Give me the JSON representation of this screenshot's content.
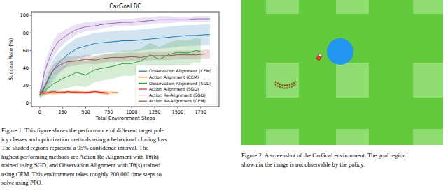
{
  "chart_data": {
    "type": "line",
    "title": "CarGoal BC",
    "x_label": "Total Environment Steps",
    "y_label": "Success Rate (%)",
    "xlim": [
      -90,
      1950
    ],
    "ylim": [
      -4,
      104
    ],
    "xticks": [
      0,
      250,
      500,
      750,
      1000,
      1250,
      1500,
      1750
    ],
    "yticks": [
      0,
      20,
      40,
      60,
      80,
      100
    ],
    "grid": false,
    "legend": "lower right",
    "series": [
      {
        "name": "Observation Alignment (CEM)",
        "color": "#1f77b4",
        "x": [
          0,
          25,
          50,
          100,
          150,
          200,
          250,
          300,
          400,
          500,
          600,
          700,
          800,
          900,
          1000,
          1100,
          1200,
          1300,
          1400,
          1500,
          1600,
          1700,
          1800,
          1850
        ],
        "values": [
          10,
          14,
          18,
          28,
          38,
          45,
          50,
          55,
          62,
          65,
          68,
          69,
          70,
          71,
          71,
          72,
          73,
          74,
          75,
          76,
          77,
          77,
          78,
          78
        ],
        "lower": [
          6,
          8,
          10,
          17,
          26,
          33,
          38,
          43,
          50,
          53,
          56,
          57,
          58,
          59,
          59,
          60,
          61,
          62,
          63,
          64,
          65,
          65,
          66,
          66
        ],
        "upper": [
          14,
          20,
          27,
          39,
          50,
          57,
          62,
          67,
          74,
          77,
          80,
          81,
          82,
          83,
          83,
          84,
          85,
          86,
          87,
          88,
          89,
          89,
          90,
          90
        ]
      },
      {
        "name": "Action Alignment (CEM)",
        "color": "#ff7f0e",
        "x": [
          0,
          25,
          50,
          100,
          150,
          200,
          250,
          300,
          400,
          500,
          600,
          700,
          800,
          850
        ],
        "values": [
          10,
          11,
          12,
          12,
          11,
          12,
          13,
          12,
          13,
          12,
          13,
          11,
          12,
          12
        ],
        "lower": [
          8,
          9,
          10,
          10,
          9,
          10,
          11,
          10,
          11,
          10,
          11,
          9,
          10,
          10
        ],
        "upper": [
          12,
          13,
          14,
          14,
          13,
          14,
          15,
          14,
          15,
          14,
          15,
          13,
          14,
          14
        ]
      },
      {
        "name": "Observation Alignment (SGD)",
        "color": "#2ca02c",
        "x": [
          0,
          25,
          50,
          100,
          150,
          200,
          250,
          300,
          400,
          500,
          600,
          700,
          800,
          900,
          1000,
          1100,
          1200,
          1300,
          1400,
          1500,
          1600,
          1700,
          1750
        ],
        "values": [
          10,
          12,
          14,
          18,
          22,
          25,
          28,
          30,
          35,
          32,
          38,
          40,
          42,
          45,
          45,
          48,
          55,
          50,
          55,
          58,
          57,
          60,
          59
        ],
        "lower": [
          6,
          7,
          8,
          10,
          12,
          14,
          16,
          17,
          20,
          18,
          24,
          26,
          28,
          31,
          31,
          34,
          41,
          36,
          41,
          44,
          43,
          46,
          45
        ],
        "upper": [
          14,
          17,
          21,
          27,
          32,
          37,
          41,
          44,
          50,
          47,
          53,
          55,
          57,
          60,
          60,
          62,
          69,
          64,
          69,
          72,
          71,
          74,
          73
        ]
      },
      {
        "name": "Action Alignment (SGD)",
        "color": "#d62728",
        "x": [
          0,
          25,
          50,
          100,
          150,
          200,
          250,
          300,
          400,
          500,
          600,
          700,
          750
        ],
        "values": [
          10,
          12,
          11,
          12,
          13,
          12,
          12,
          13,
          12,
          12,
          13,
          12,
          11
        ],
        "lower": [
          8,
          10,
          9,
          10,
          11,
          10,
          10,
          11,
          10,
          10,
          11,
          10,
          9
        ],
        "upper": [
          12,
          14,
          13,
          14,
          15,
          14,
          14,
          15,
          14,
          14,
          15,
          14,
          13
        ]
      },
      {
        "name": "Action Re-Alignment (SGD)",
        "color": "#9467bd",
        "x": [
          0,
          25,
          50,
          100,
          150,
          200,
          250,
          300,
          400,
          500,
          600,
          700,
          800,
          900,
          1000,
          1100,
          1200,
          1300,
          1400,
          1500,
          1600,
          1700,
          1800,
          1850
        ],
        "values": [
          12,
          20,
          35,
          50,
          62,
          70,
          74,
          78,
          84,
          87,
          88,
          90,
          91,
          92,
          92,
          93,
          94,
          95,
          95,
          95,
          95,
          96,
          96,
          96
        ],
        "lower": [
          8,
          14,
          26,
          40,
          52,
          61,
          66,
          71,
          78,
          82,
          83,
          86,
          87,
          88,
          88,
          89,
          90,
          91,
          91,
          92,
          92,
          93,
          93,
          93
        ],
        "upper": [
          16,
          26,
          44,
          60,
          72,
          79,
          82,
          85,
          90,
          92,
          93,
          94,
          95,
          96,
          96,
          97,
          98,
          99,
          99,
          98,
          98,
          99,
          99,
          99
        ]
      },
      {
        "name": "Action Re-Alignment (CEM)",
        "color": "#8c564b",
        "x": [
          0,
          25,
          50,
          100,
          150,
          200,
          250,
          300,
          400,
          500,
          600,
          700,
          800,
          900,
          1000,
          1100,
          1200,
          1300,
          1400,
          1500,
          1600,
          1700,
          1800,
          1850
        ],
        "values": [
          10,
          13,
          17,
          30,
          38,
          42,
          45,
          47,
          48,
          50,
          49,
          51,
          52,
          52,
          53,
          52,
          54,
          54,
          54,
          55,
          55,
          55,
          56,
          56
        ],
        "lower": [
          7,
          9,
          12,
          24,
          32,
          36,
          39,
          41,
          43,
          45,
          44,
          46,
          47,
          47,
          48,
          47,
          49,
          49,
          49,
          50,
          50,
          50,
          51,
          51
        ],
        "upper": [
          13,
          17,
          22,
          36,
          44,
          48,
          51,
          53,
          53,
          55,
          54,
          56,
          57,
          57,
          58,
          57,
          59,
          59,
          59,
          60,
          60,
          60,
          61,
          61
        ]
      }
    ]
  },
  "captions": [
    {
      "lines": [
        "Figure 1: This figure shows the performance of different target pol-",
        "icy classes and optimization methods using a behavioral cloning loss.",
        "The shaded regions represent a 95% confidence interval.  The",
        "highest performing methods are Action Re-Alignment with Tθ(h)",
        "trained using SGD, and Observation Alignment with Tθ(s) trained",
        "using CEM. This environment takes roughly 200,000 time steps to",
        "solve using PPO."
      ]
    },
    {
      "lines": [
        "Figure 2: A screenshot of the CarGoal environment. The goal region",
        "shown in the image is not observable by the policy."
      ]
    }
  ]
}
